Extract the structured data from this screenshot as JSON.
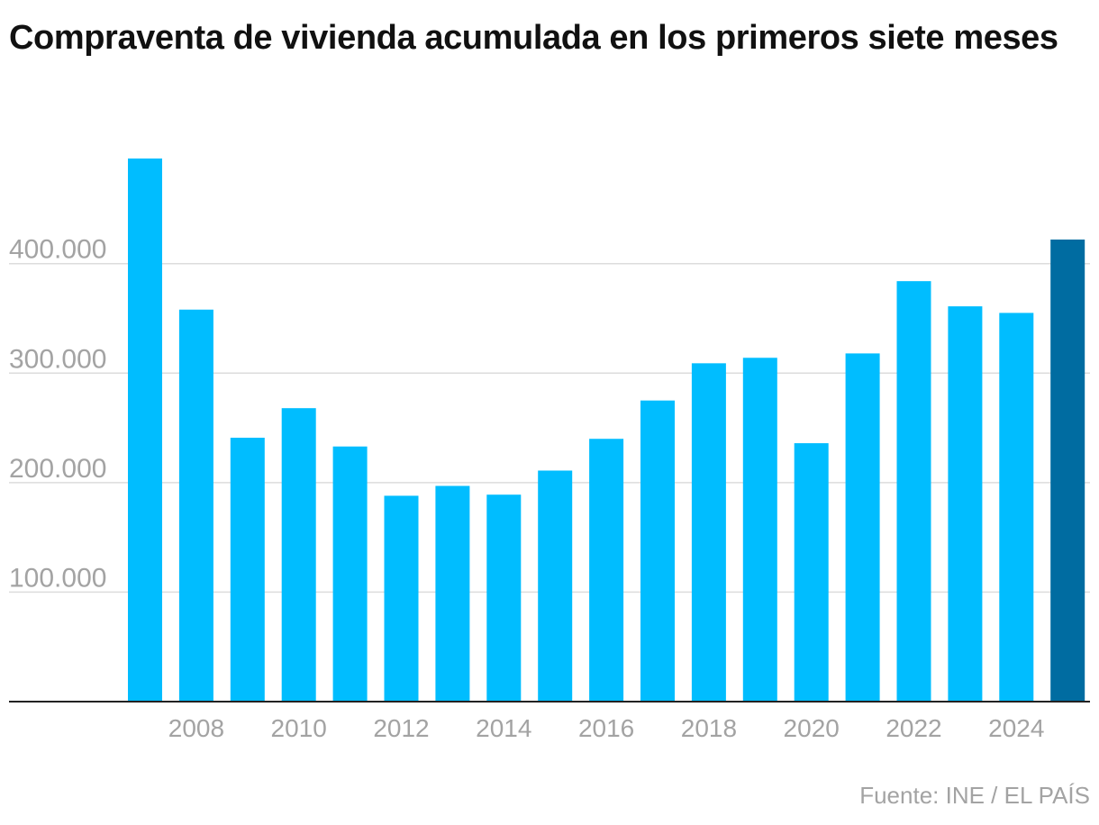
{
  "chart_data": {
    "type": "bar",
    "title": "Compraventa de vivienda acumulada en los primeros siete meses",
    "xlabel": "",
    "ylabel": "",
    "categories": [
      "2007",
      "2008",
      "2009",
      "2010",
      "2011",
      "2012",
      "2013",
      "2014",
      "2015",
      "2016",
      "2017",
      "2018",
      "2019",
      "2020",
      "2021",
      "2022",
      "2023",
      "2024",
      "2025"
    ],
    "x_tick_labels": [
      "2008",
      "2010",
      "2012",
      "2014",
      "2016",
      "2018",
      "2020",
      "2022",
      "2024"
    ],
    "values": [
      496000,
      358000,
      241000,
      268000,
      233000,
      188000,
      197000,
      189000,
      211000,
      240000,
      275000,
      309000,
      314000,
      236000,
      318000,
      384000,
      361000,
      355000,
      422000
    ],
    "highlight_category": "2025",
    "colors": {
      "bar": "#00bdff",
      "highlight": "#006ca1",
      "grid": "#dcdcdc",
      "axis": "#222222",
      "tick_text": "#a3a3a3"
    },
    "ylim": [
      0,
      500000
    ],
    "yticks": [
      100000,
      200000,
      300000,
      400000
    ],
    "ytick_labels": [
      "100.000",
      "200.000",
      "300.000",
      "400.000"
    ],
    "grid": true,
    "source": "Fuente: INE / EL PAÍS"
  }
}
